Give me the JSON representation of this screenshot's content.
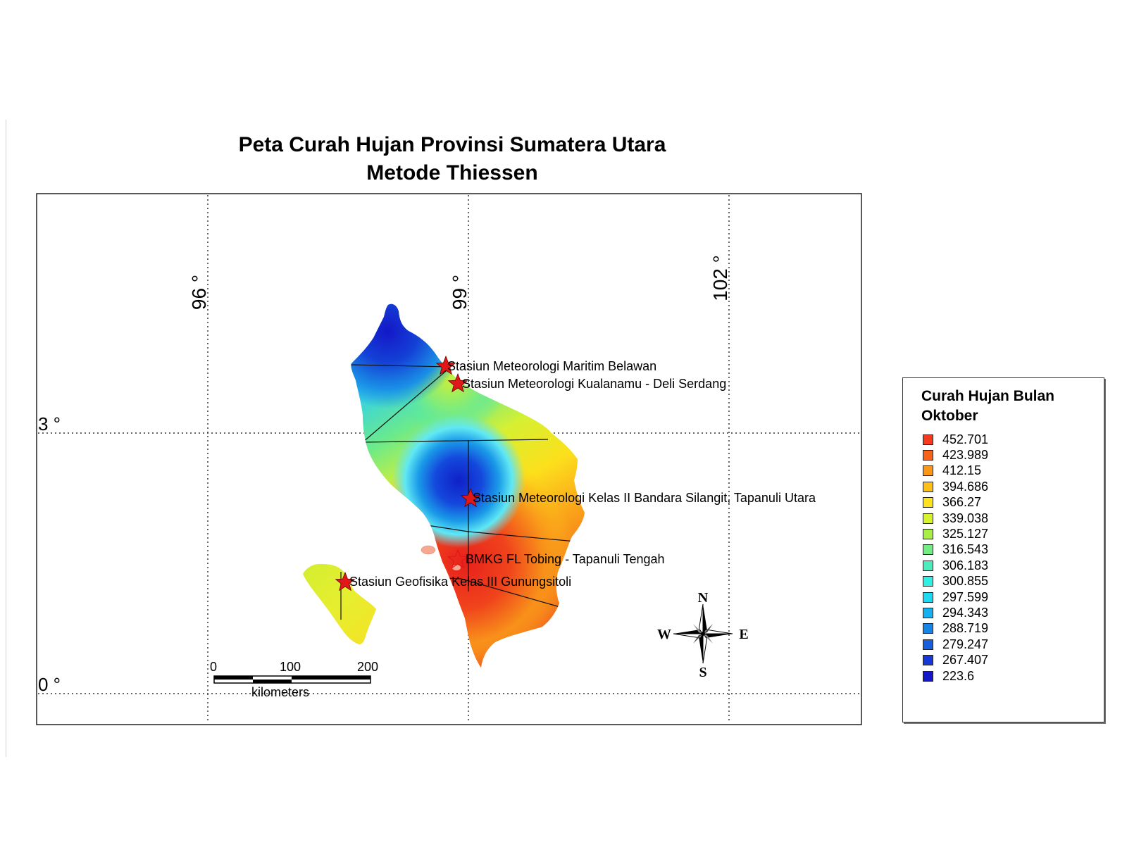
{
  "map": {
    "title_line1": "Peta Curah Hujan Provinsi Sumatera Utara",
    "title_line2": "Metode Thiessen",
    "grid": {
      "longitude_labels": [
        "96 °",
        "99 °",
        "102 °"
      ],
      "latitude_labels": [
        "3 °",
        "0 °"
      ]
    },
    "stations": [
      {
        "name": "Stasiun Meteorologi Maritim Belawan",
        "icon": "red-star-icon"
      },
      {
        "name": "Stasiun Meteorologi Kualanamu - Deli Serdang",
        "icon": "red-star-icon"
      },
      {
        "name": "Stasiun Meteorologi Kelas II Bandara Silangit, Tapanuli Utara",
        "icon": "red-star-icon"
      },
      {
        "name": "BMKG FL Tobing - Tapanuli Tengah",
        "icon": "star-outline-icon"
      },
      {
        "name": "Stasiun Geofisika Kelas III Gunungsitoli",
        "icon": "red-star-icon"
      }
    ],
    "scale_bar": {
      "ticks": [
        "0",
        "100",
        "200"
      ],
      "unit": "kilometers"
    },
    "compass": {
      "north": "N",
      "south": "S",
      "east": "E",
      "west": "W"
    }
  },
  "legend": {
    "title": "Curah Hujan Bulan Oktober",
    "items": [
      {
        "label": "452.701",
        "color": "#f53a1e"
      },
      {
        "label": "423.989",
        "color": "#f7631a"
      },
      {
        "label": "412.15",
        "color": "#fa9618"
      },
      {
        "label": "394.686",
        "color": "#fdc018"
      },
      {
        "label": "366.27",
        "color": "#fce31c"
      },
      {
        "label": "339.038",
        "color": "#d8f230"
      },
      {
        "label": "325.127",
        "color": "#a8ee47"
      },
      {
        "label": "316.543",
        "color": "#72ec84"
      },
      {
        "label": "306.183",
        "color": "#4aeebe"
      },
      {
        "label": "300.855",
        "color": "#2ff0e2"
      },
      {
        "label": "297.599",
        "color": "#1ed8f4"
      },
      {
        "label": "294.343",
        "color": "#17b0ee"
      },
      {
        "label": "288.719",
        "color": "#1686e6"
      },
      {
        "label": "279.247",
        "color": "#165ee0"
      },
      {
        "label": "267.407",
        "color": "#1538d6"
      },
      {
        "label": "223.6",
        "color": "#1418c8"
      }
    ]
  },
  "colors": {
    "station_star": "#e01818",
    "frame": "#222222"
  }
}
